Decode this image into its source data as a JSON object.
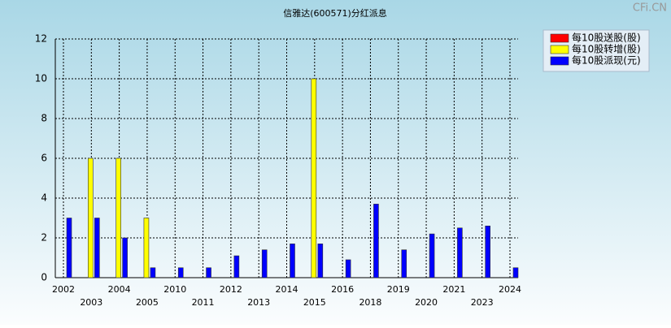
{
  "chart_data": {
    "type": "bar",
    "title": "信雅达(600571)分红派息",
    "watermark": "CFi.CN",
    "categories": [
      "2002",
      "2003",
      "2004",
      "2005",
      "2010",
      "2011",
      "2012",
      "2013",
      "2014",
      "2015",
      "2016",
      "2018",
      "2019",
      "2020",
      "2021",
      "2023",
      "2024"
    ],
    "series": [
      {
        "name": "每10股送股(股)",
        "color": "#ff0000",
        "values": [
          null,
          null,
          null,
          null,
          null,
          null,
          null,
          null,
          null,
          null,
          null,
          null,
          null,
          null,
          null,
          null,
          null
        ]
      },
      {
        "name": "每10股转增(股)",
        "color": "#ffff00",
        "values": [
          null,
          6,
          6,
          3,
          null,
          null,
          null,
          null,
          null,
          10,
          null,
          null,
          null,
          null,
          null,
          null,
          null
        ]
      },
      {
        "name": "每10股派现(元)",
        "color": "#0000ff",
        "values": [
          3,
          3,
          2,
          0.5,
          0.5,
          0.5,
          1.1,
          1.4,
          1.7,
          1.7,
          0.9,
          3.7,
          1.4,
          2.2,
          2.5,
          2.6,
          0.5
        ]
      }
    ],
    "ylim": [
      0,
      12
    ],
    "yticks": [
      0,
      2,
      4,
      6,
      8,
      10,
      12
    ],
    "grid": true
  }
}
